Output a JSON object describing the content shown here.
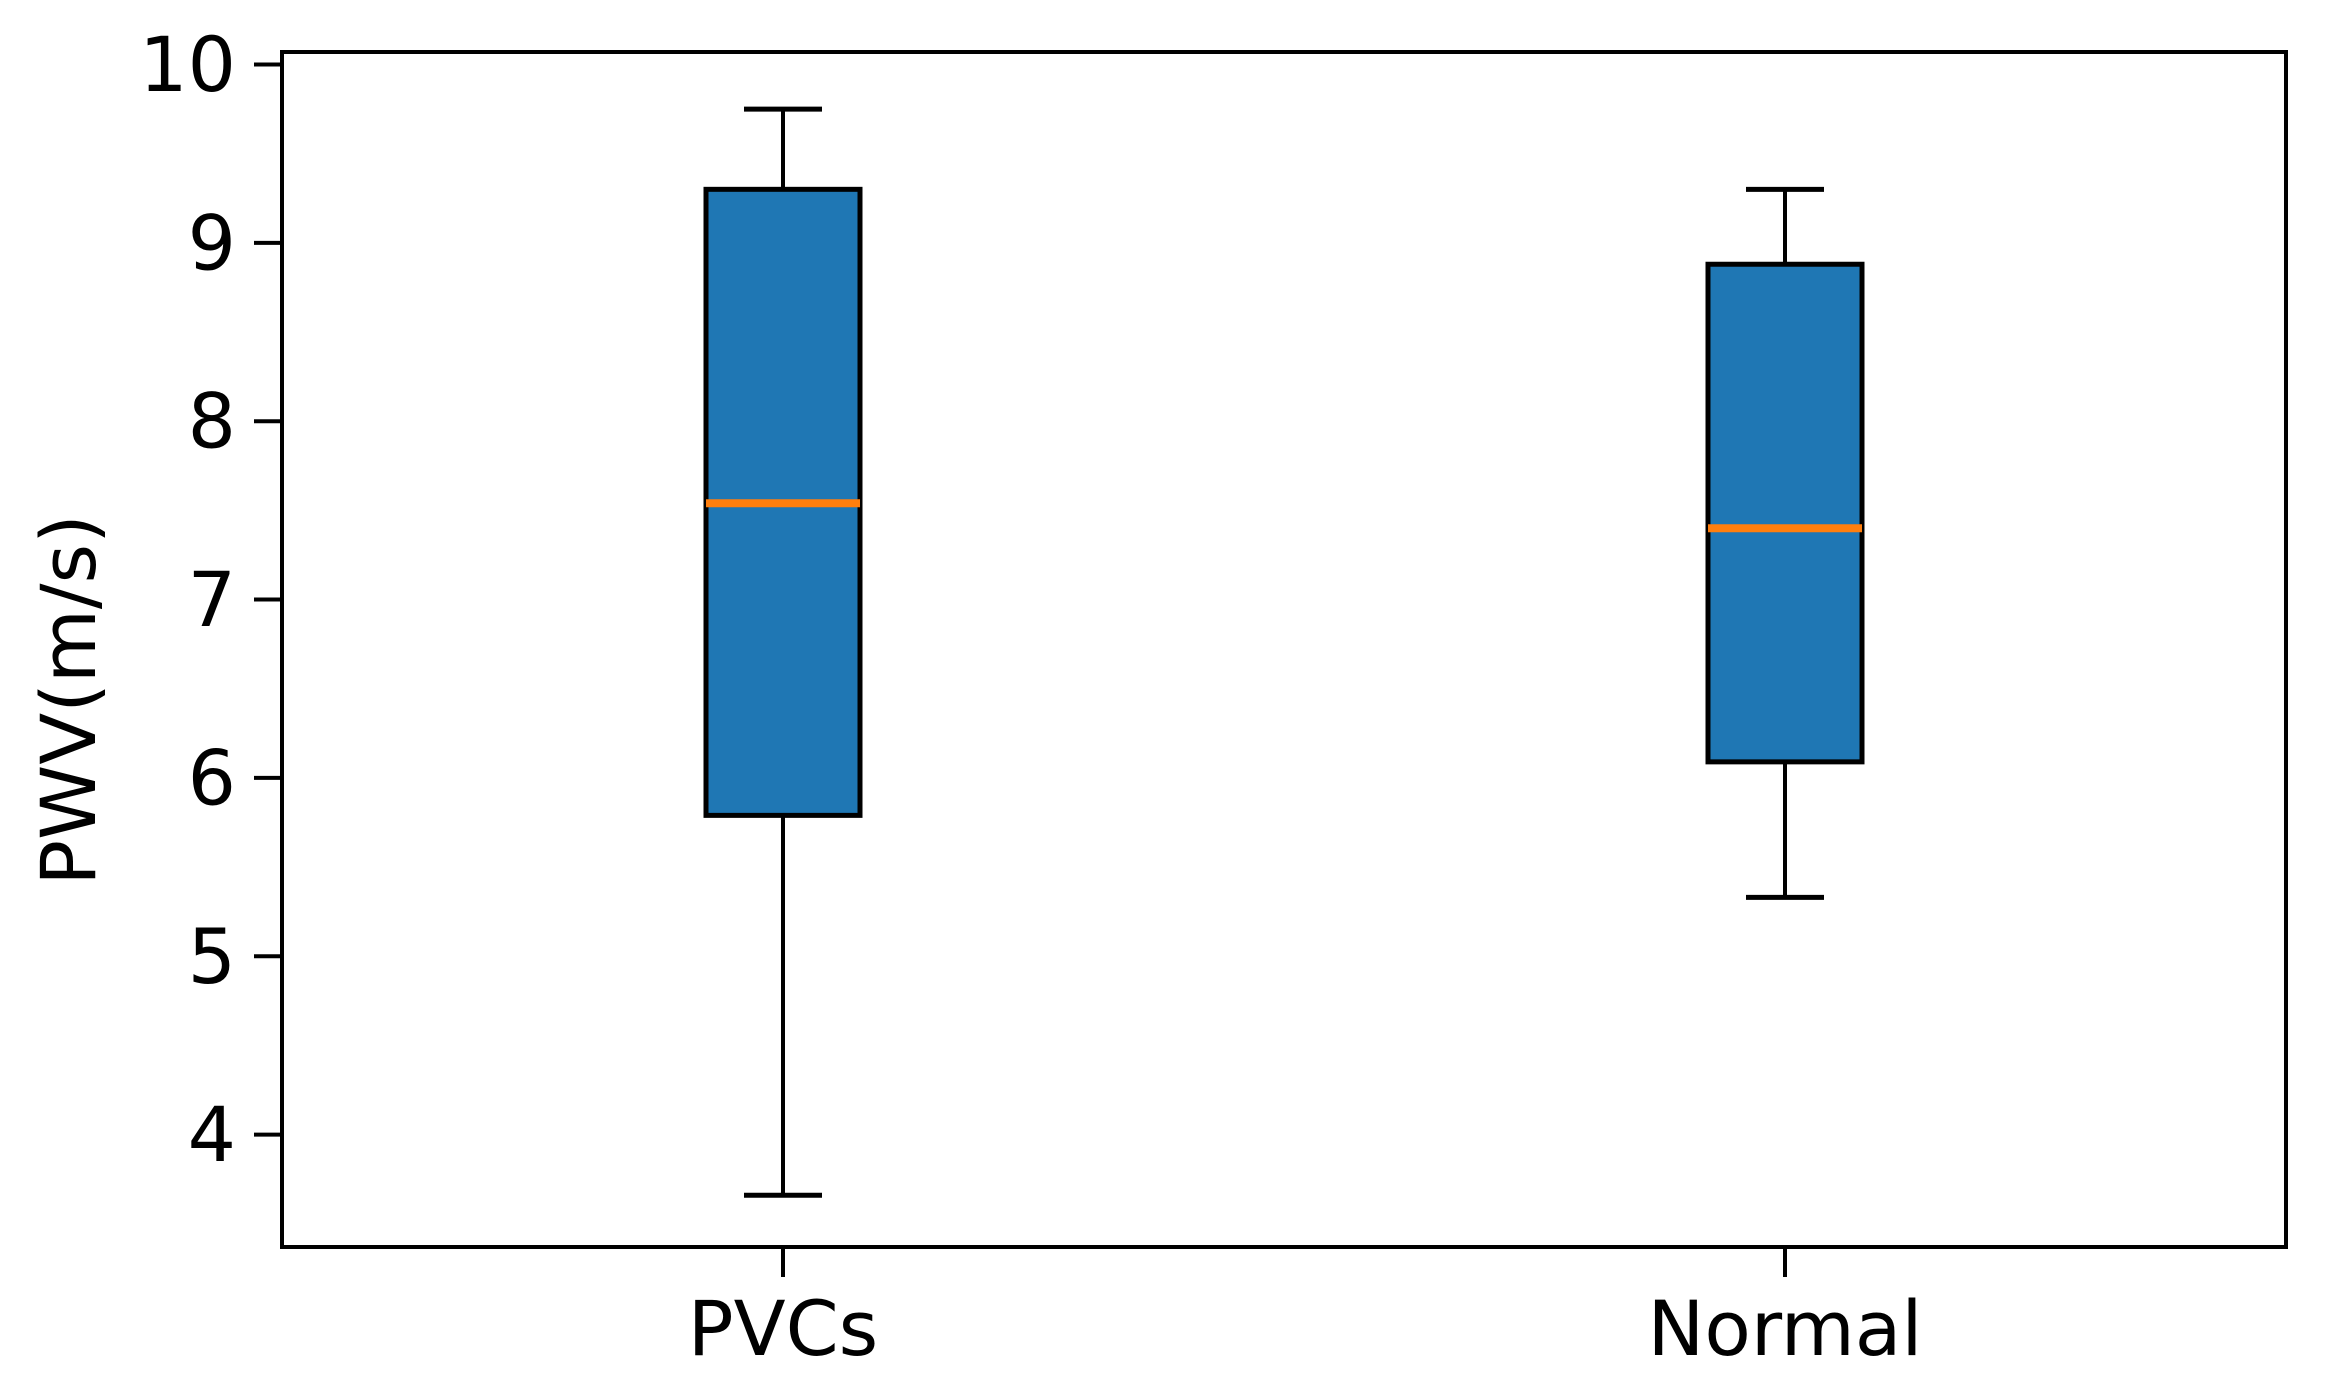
{
  "figure": {
    "background": "#ffffff"
  },
  "chart_data": {
    "type": "boxplot",
    "title": "",
    "xlabel": "",
    "ylabel": "PWV(m/s)",
    "categories": [
      "PVCs",
      "Normal"
    ],
    "yticks": [
      4,
      5,
      6,
      7,
      8,
      9,
      10
    ],
    "ylim": [
      3.37,
      10.07
    ],
    "grid": false,
    "legend": null,
    "series": [
      {
        "name": "PVCs",
        "whislo": 3.66,
        "q1": 5.79,
        "med": 7.54,
        "q3": 9.3,
        "whishi": 9.75
      },
      {
        "name": "Normal",
        "whislo": 5.33,
        "q1": 6.09,
        "med": 7.4,
        "q3": 8.88,
        "whishi": 9.3
      }
    ],
    "colors": {
      "box_fill": "#1f77b4",
      "median": "#ff7f0e",
      "line": "#000000"
    }
  }
}
